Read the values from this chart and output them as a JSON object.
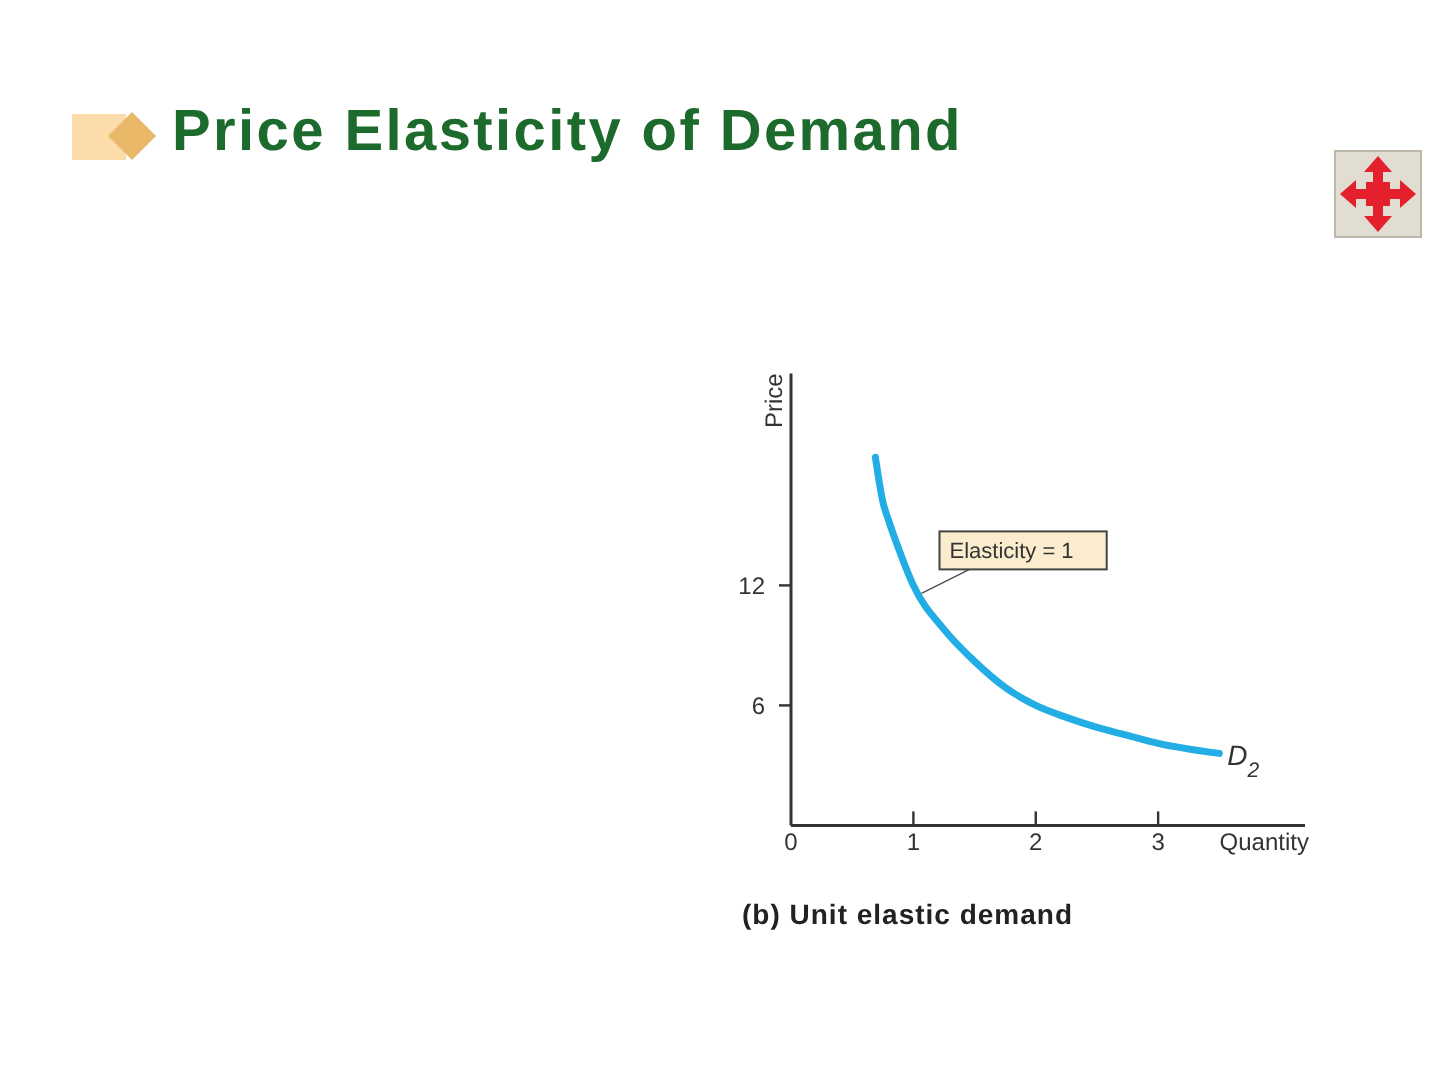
{
  "chart_data": {
    "type": "line",
    "title": "Price Elasticity of Demand",
    "xlabel": "Quantity",
    "ylabel": "Price",
    "x": [
      0.69,
      0.75,
      0.8,
      0.9,
      1,
      1.25,
      1.5,
      1.75,
      2,
      2.25,
      2.5,
      2.75,
      3,
      3.5
    ],
    "series": [
      {
        "name": "D$_{2}$",
        "color": "#22aee4",
        "values": [
          18.4,
          16.2,
          15.2,
          13.5,
          12,
          9.8,
          8.2,
          6.9,
          6,
          5.4,
          4.9,
          4.5,
          4.1,
          3.6
        ]
      }
    ],
    "xlim": [
      0,
      4.2
    ],
    "ylim": [
      0,
      22.6
    ],
    "xticks": [
      0,
      1,
      2,
      3
    ],
    "yticks": [
      6,
      12
    ],
    "marker": "none",
    "line_style": "solid",
    "annotations": [
      {
        "text": "Elasticity = 1",
        "x": 1.05,
        "y": 11.5
      },
      "(b) Unit elastic demand"
    ]
  }
}
